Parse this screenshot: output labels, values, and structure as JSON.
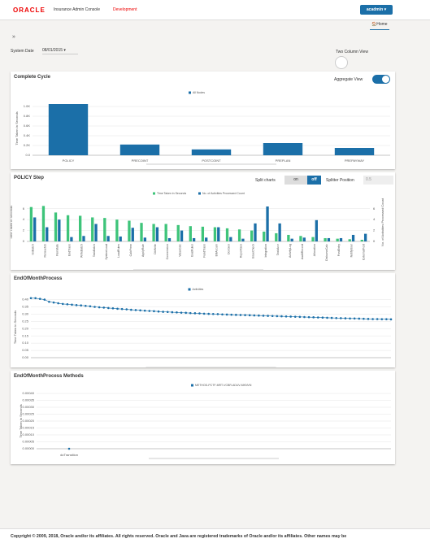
{
  "header": {
    "logo": "ORACLE",
    "app": "Insurance Admin Console",
    "env": "Development",
    "user": "acadmin",
    "tab": "Home"
  },
  "toolbar": {
    "date_label": "System Date",
    "date": "08/01/2015",
    "two_column": "Two Column View"
  },
  "controls": {
    "aggregate": "Aggregate View",
    "split": "Split charts",
    "on": "on",
    "off": "off",
    "splitter": "Splitter Position",
    "splitter_value": "0.5"
  },
  "chart_data": [
    {
      "type": "bar",
      "title": "Complete Cycle",
      "y_label": "Time Taken in Seconds",
      "categories": [
        "POLICY",
        "PRECOINT",
        "POSTCOINT",
        "PREPLAN",
        "PREPAYWAY"
      ],
      "series": [
        {
          "name": "All Nodes",
          "color": "#1b6fa8",
          "values": [
            1050,
            220,
            120,
            250,
            150
          ]
        }
      ],
      "ylim": [
        0,
        1100
      ],
      "yticks": [
        {
          "value": 0,
          "label": "0.0"
        },
        {
          "value": 200,
          "label": "0.2K"
        },
        {
          "value": 400,
          "label": "0.4K"
        },
        {
          "value": 600,
          "label": "0.6K"
        },
        {
          "value": 800,
          "label": "0.8K"
        },
        {
          "value": 1000,
          "label": "1.0K"
        }
      ],
      "grid": true
    },
    {
      "type": "bar",
      "title": "POLICY Step",
      "y_label": "Time Taken in Seconds",
      "y2_label": "No. of Activities Processed Count",
      "categories": [
        "IssBatch",
        "RenewJob",
        "Reinstate",
        "EndTrans",
        "WriteBatch",
        "TaskBatch",
        "SystemLoad",
        "LoadRules",
        "CalcPrem",
        "ApplyRule",
        "DbWrite",
        "Commission",
        "ValueCalc",
        "EvalRules",
        "FundTrans",
        "BillAccum",
        "DocGen",
        "ReportGen",
        "IssueCheck",
        "Integration",
        "TaskAccr",
        "ActivityLog",
        "AuditRecord",
        "Allocation",
        "DisburseCalc",
        "PostEntry",
        "NotifyUser",
        "ExternalPost"
      ],
      "series": [
        {
          "name": "Time Taken in Seconds",
          "color": "#3ec47a",
          "values": [
            6.3,
            6.5,
            5.3,
            4.8,
            4.7,
            4.4,
            4.3,
            4.0,
            3.8,
            3.4,
            3.2,
            3.2,
            3.0,
            2.8,
            2.7,
            2.6,
            2.4,
            2.2,
            2.0,
            1.8,
            1.5,
            1.2,
            1.0,
            0.8,
            0.6,
            0.5,
            0.4,
            0.3
          ]
        },
        {
          "name": "No. of Activities Processed Count",
          "color": "#1b6fa8",
          "axis": "y2",
          "values": [
            4.4,
            2.6,
            4.0,
            0.8,
            1.0,
            3.2,
            1.0,
            0.9,
            2.5,
            0.7,
            2.6,
            0.6,
            2.0,
            0.6,
            0.7,
            2.6,
            0.8,
            0.5,
            3.3,
            6.4,
            3.3,
            0.5,
            0.7,
            3.9,
            0.6,
            0.6,
            1.2,
            1.4
          ]
        }
      ],
      "ylim": [
        0,
        7
      ],
      "yticks": [
        0,
        2,
        4,
        6
      ],
      "y2lim": [
        0,
        7
      ],
      "y2ticks": [
        0,
        2,
        4,
        6
      ],
      "grid": true
    },
    {
      "type": "line",
      "title": "EndOfMonthProcess",
      "y_label": "Time Taken in Seconds",
      "series": [
        {
          "name": "Activities",
          "color": "#1b6fa8",
          "values": [
            0.41,
            0.41,
            0.405,
            0.4,
            0.385,
            0.38,
            0.375,
            0.37,
            0.368,
            0.365,
            0.362,
            0.36,
            0.357,
            0.354,
            0.35,
            0.347,
            0.345,
            0.342,
            0.34,
            0.337,
            0.335,
            0.333,
            0.33,
            0.328,
            0.326,
            0.324,
            0.322,
            0.32,
            0.318,
            0.316,
            0.315,
            0.313,
            0.312,
            0.31,
            0.309,
            0.307,
            0.306,
            0.305,
            0.303,
            0.302,
            0.301,
            0.3,
            0.298,
            0.297,
            0.296,
            0.295,
            0.294,
            0.293,
            0.292,
            0.291,
            0.29,
            0.289,
            0.288,
            0.287,
            0.286,
            0.285,
            0.284,
            0.283,
            0.282,
            0.281,
            0.28,
            0.279,
            0.278,
            0.277,
            0.276,
            0.275,
            0.274,
            0.273,
            0.272,
            0.271,
            0.27,
            0.27,
            0.269,
            0.268,
            0.267,
            0.266,
            0.266,
            0.265,
            0.265,
            0.264
          ]
        }
      ],
      "ylim": [
        0,
        0.42
      ],
      "yticks": [
        {
          "value": 0,
          "label": "0.00"
        },
        {
          "value": 0.05,
          "label": "0.05"
        },
        {
          "value": 0.1,
          "label": "0.10"
        },
        {
          "value": 0.15,
          "label": "0.15"
        },
        {
          "value": 0.2,
          "label": "0.20"
        },
        {
          "value": 0.25,
          "label": "0.25"
        },
        {
          "value": 0.3,
          "label": "0.30"
        },
        {
          "value": 0.35,
          "label": "0.35"
        },
        {
          "value": 0.4,
          "label": "0.40"
        }
      ],
      "grid": true
    },
    {
      "type": "line",
      "title": "EndOfMonthProcess Methods",
      "y_label": "Time Taken in Seconds",
      "categories": [
        "doTransition"
      ],
      "series": [
        {
          "name": "METHOD-PCTF-MRT-VCBR-ADUV-MKNVN",
          "color": "#1b6fa8",
          "values": [
            0
          ]
        }
      ],
      "ylim": [
        0,
        0.0004
      ],
      "yticks": [
        {
          "value": 0,
          "label": "0.00000"
        },
        {
          "value": 5e-05,
          "label": "0.00005"
        },
        {
          "value": 0.0001,
          "label": "0.00010"
        },
        {
          "value": 0.00015,
          "label": "0.00015"
        },
        {
          "value": 0.0002,
          "label": "0.00020"
        },
        {
          "value": 0.00025,
          "label": "0.00025"
        },
        {
          "value": 0.0003,
          "label": "0.00030"
        },
        {
          "value": 0.00035,
          "label": "0.00035"
        },
        {
          "value": 0.0004,
          "label": "0.00040"
        }
      ],
      "grid": true
    }
  ],
  "footer": "Copyright © 2009, 2018, Oracle and/or its affiliates. All rights reserved. Oracle and Java are registered trademarks of Oracle and/or its affiliates. Other names may be"
}
